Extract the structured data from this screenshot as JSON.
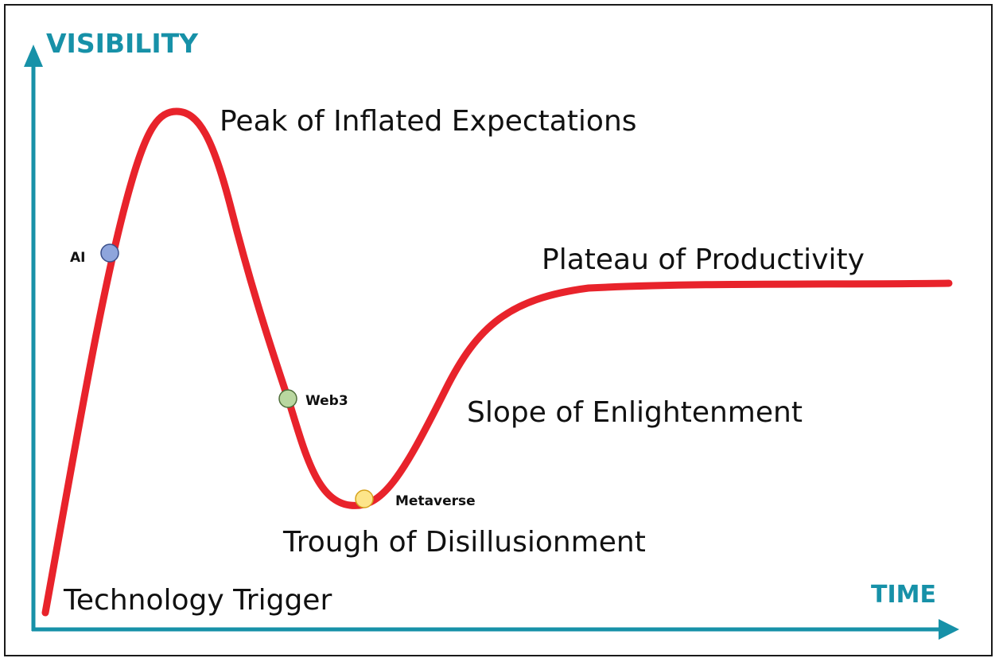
{
  "axes": {
    "y_title": "VISIBILITY",
    "x_title": "TIME",
    "axis_color": "#1791a8"
  },
  "curve": {
    "color": "#e8232b"
  },
  "phases": {
    "technology_trigger": "Technology Trigger",
    "peak": "Peak of Inflated Expectations",
    "trough": "Trough of Disillusionment",
    "slope": "Slope of Enlightenment",
    "plateau": "Plateau of Productivity"
  },
  "technologies": [
    {
      "label": "AI",
      "color": "#8ea5dc",
      "stroke": "#3a4f8a"
    },
    {
      "label": "Web3",
      "color": "#b9d7a0",
      "stroke": "#4f6e3a"
    },
    {
      "label": "Metaverse",
      "color": "#fde58a",
      "stroke": "#d6a21c"
    }
  ]
}
